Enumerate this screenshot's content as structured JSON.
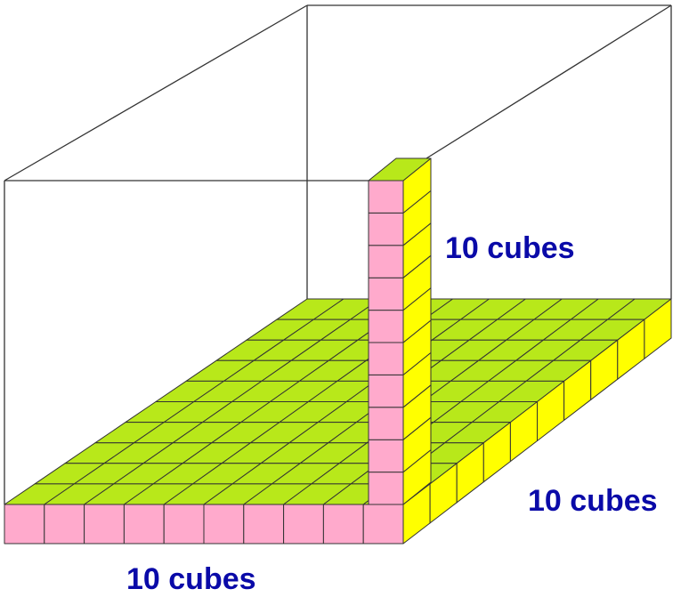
{
  "labels": {
    "height": "10 cubes",
    "depth": "10 cubes",
    "width": "10 cubes"
  },
  "cube_counts": {
    "width": 10,
    "depth": 10,
    "height": 10
  },
  "colors": {
    "front_face": "#ffaacc",
    "top_face": "#b8e81a",
    "side_face": "#ffff00",
    "outline": "#333333",
    "label_text": "#0a0aa8",
    "background": "#ffffff"
  }
}
